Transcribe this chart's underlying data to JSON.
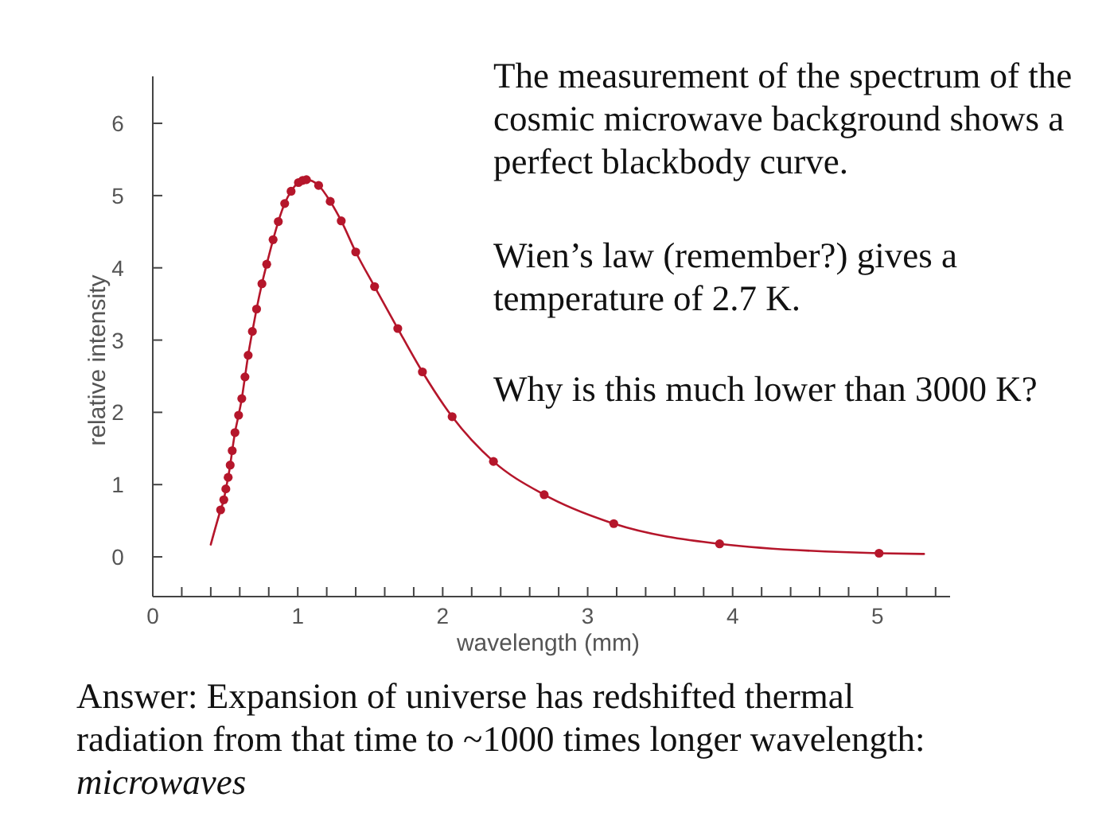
{
  "chart_data": {
    "type": "scatter",
    "xlabel": "wavelength (mm)",
    "ylabel": "relative intensity",
    "xlim": [
      0,
      5.5
    ],
    "ylim": [
      -0.55,
      6.65
    ],
    "xticks": [
      0,
      {
        "value": 0.2,
        "label": null
      },
      {
        "value": 0.4,
        "label": null
      },
      {
        "value": 0.6,
        "label": null
      },
      {
        "value": 0.8,
        "label": null
      },
      1,
      {
        "value": 1.2,
        "label": null
      },
      {
        "value": 1.4,
        "label": null
      },
      {
        "value": 1.6,
        "label": null
      },
      {
        "value": 1.8,
        "label": null
      },
      2,
      {
        "value": 2.2,
        "label": null
      },
      {
        "value": 2.4,
        "label": null
      },
      {
        "value": 2.6,
        "label": null
      },
      {
        "value": 2.8,
        "label": null
      },
      3,
      {
        "value": 3.2,
        "label": null
      },
      {
        "value": 3.4,
        "label": null
      },
      {
        "value": 3.6,
        "label": null
      },
      {
        "value": 3.8,
        "label": null
      },
      4,
      {
        "value": 4.2,
        "label": null
      },
      {
        "value": 4.4,
        "label": null
      },
      {
        "value": 4.6,
        "label": null
      },
      {
        "value": 4.8,
        "label": null
      },
      5,
      {
        "value": 5.2,
        "label": null
      },
      {
        "value": 5.4,
        "label": null
      }
    ],
    "yticks": [
      0,
      1,
      2,
      3,
      4,
      5,
      6
    ],
    "grid": false,
    "series": [
      {
        "type": "line",
        "color": "#b5162b",
        "marker": "none",
        "line_style": "solid",
        "x": [
          0.4,
          0.468,
          0.49,
          0.504,
          0.52,
          0.534,
          0.548,
          0.567,
          0.592,
          0.614,
          0.636,
          0.658,
          0.687,
          0.716,
          0.753,
          0.786,
          0.83,
          0.866,
          0.91,
          0.954,
          1.005,
          1.034,
          1.06,
          1.144,
          1.224,
          1.3,
          1.4,
          1.53,
          1.69,
          1.86,
          2.065,
          2.35,
          2.7,
          3.18,
          3.91,
          5.01,
          5.32
        ],
        "values": [
          0.17,
          0.65,
          0.79,
          0.94,
          1.1,
          1.27,
          1.47,
          1.72,
          1.96,
          2.19,
          2.49,
          2.79,
          3.12,
          3.43,
          3.78,
          4.05,
          4.39,
          4.64,
          4.89,
          5.06,
          5.18,
          5.21,
          5.22,
          5.14,
          4.92,
          4.65,
          4.22,
          3.74,
          3.16,
          2.56,
          1.94,
          1.32,
          0.86,
          0.46,
          0.18,
          0.05,
          0.04
        ]
      },
      {
        "color": "#b5162b",
        "marker": "circle",
        "x": [
          0.468,
          0.49,
          0.504,
          0.52,
          0.534,
          0.548,
          0.567,
          0.592,
          0.614,
          0.636,
          0.658,
          0.687,
          0.716,
          0.753,
          0.786,
          0.83,
          0.866,
          0.91,
          0.954,
          1.005,
          1.034,
          1.06,
          1.144,
          1.224,
          1.3,
          1.4,
          1.53,
          1.69,
          1.86,
          2.065,
          2.35,
          2.7,
          3.18,
          3.91,
          5.01
        ],
        "values": [
          0.65,
          0.79,
          0.94,
          1.1,
          1.27,
          1.47,
          1.72,
          1.96,
          2.19,
          2.49,
          2.79,
          3.12,
          3.43,
          3.78,
          4.05,
          4.39,
          4.64,
          4.89,
          5.06,
          5.18,
          5.21,
          5.22,
          5.14,
          4.92,
          4.65,
          4.22,
          3.74,
          3.16,
          2.56,
          1.94,
          1.32,
          0.86,
          0.46,
          0.18,
          0.05
        ]
      }
    ],
    "annotations": [
      "The measurement of the spectrum of the cosmic microwave background shows a perfect blackbody curve.",
      "Wien’s law (remember?) gives a temperature of 2.7 K.",
      "Why is this much lower than 3000 K?",
      "Answer: Expansion of universe has redshifted thermal radiation from that time to ~1000 times longer wavelength: microwaves"
    ]
  }
}
